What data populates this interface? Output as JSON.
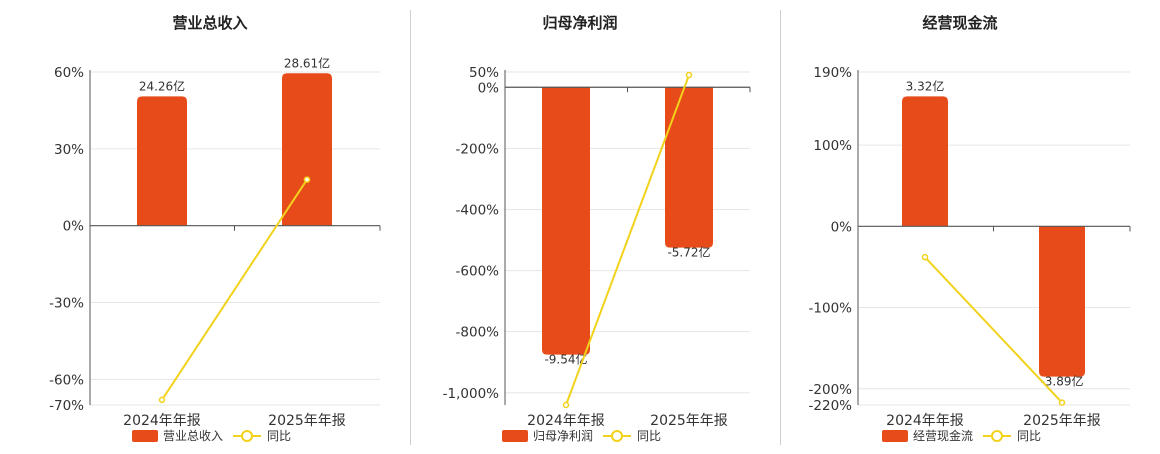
{
  "colors": {
    "bar": "#E84B1A",
    "line": "#F2D21B",
    "grid": "#e6e6e6",
    "axis": "#555555"
  },
  "legend_line_label": "同比",
  "chart_data": [
    {
      "type": "bar",
      "title": "营业总收入",
      "categories": [
        "2024年年报",
        "2025年年报"
      ],
      "series": [
        {
          "name": "营业总收入",
          "kind": "bar",
          "value_labels": [
            "24.26亿",
            "28.61亿"
          ]
        },
        {
          "name": "同比",
          "kind": "line",
          "values": [
            -68,
            18
          ]
        }
      ],
      "bar_pct": [
        50.5,
        59.5
      ],
      "ylim": [
        -70,
        60
      ],
      "yticks": [
        60,
        30,
        0,
        -30,
        -60,
        -70
      ],
      "ytick_labels": [
        "60%",
        "30%",
        "0%",
        "-30%",
        "-60%",
        "-70%"
      ],
      "grid": true,
      "legend": "bottom"
    },
    {
      "type": "bar",
      "title": "归母净利润",
      "categories": [
        "2024年年报",
        "2025年年报"
      ],
      "series": [
        {
          "name": "归母净利润",
          "kind": "bar",
          "value_labels": [
            "-9.54亿",
            "-5.72亿"
          ]
        },
        {
          "name": "同比",
          "kind": "line",
          "values": [
            -1040,
            40
          ]
        }
      ],
      "bar_pct": [
        -875,
        -525
      ],
      "ylim": [
        -1040,
        50
      ],
      "yticks": [
        50,
        0,
        -200,
        -400,
        -600,
        -800,
        -1000
      ],
      "ytick_labels": [
        "50%",
        "0%",
        "-200%",
        "-400%",
        "-600%",
        "-800%",
        "-1,000%"
      ],
      "grid": true,
      "legend": "bottom"
    },
    {
      "type": "bar",
      "title": "经营现金流",
      "categories": [
        "2024年年报",
        "2025年年报"
      ],
      "series": [
        {
          "name": "经营现金流",
          "kind": "bar",
          "value_labels": [
            "3.32亿",
            "-3.89亿"
          ]
        },
        {
          "name": "同比",
          "kind": "line",
          "values": [
            -38,
            -217
          ]
        }
      ],
      "bar_pct": [
        160,
        -185
      ],
      "ylim": [
        -220,
        190
      ],
      "yticks": [
        190,
        100,
        0,
        -100,
        -200,
        -220
      ],
      "ytick_labels": [
        "190%",
        "100%",
        "0%",
        "-100%",
        "-200%",
        "-220%"
      ],
      "grid": true,
      "legend": "bottom"
    }
  ]
}
